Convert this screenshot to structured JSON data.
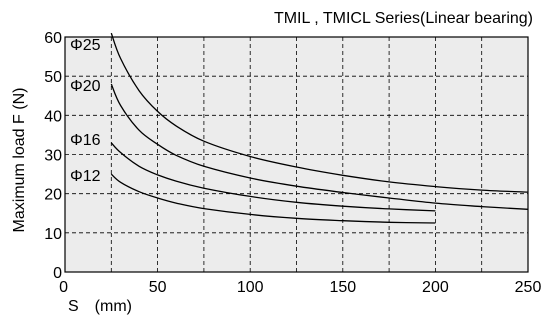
{
  "chart_data": {
    "type": "line",
    "title": "TMIL , TMICL Series(Linear bearing)",
    "xlabel": "S　(mm)",
    "ylabel": "Maximum load  F  (N)",
    "xlim": [
      0,
      250
    ],
    "ylim": [
      0,
      60
    ],
    "x_ticks": [
      "0",
      "50",
      "100",
      "150",
      "200",
      "250"
    ],
    "y_ticks": [
      "0",
      "10",
      "20",
      "30",
      "40",
      "50",
      "60"
    ],
    "grid": true,
    "grid_style": "dashed",
    "plot_background": "#ececec",
    "line_color": "#000000",
    "series": [
      {
        "name": "Φ25",
        "x": [
          25,
          30,
          40,
          50,
          60,
          75,
          100,
          125,
          150,
          175,
          200,
          225,
          250
        ],
        "y": [
          61,
          54.5,
          46.3,
          41,
          37.3,
          33.4,
          29.5,
          26.8,
          24.7,
          23,
          21.8,
          20.9,
          20.4
        ]
      },
      {
        "name": "Φ20",
        "x": [
          25,
          30,
          40,
          50,
          60,
          75,
          100,
          125,
          150,
          175,
          200,
          225,
          250
        ],
        "y": [
          48,
          42.5,
          36.2,
          32.6,
          29.8,
          27,
          24,
          21.9,
          20.3,
          18.9,
          17.6,
          16.7,
          16
        ]
      },
      {
        "name": "Φ16",
        "x": [
          25,
          30,
          40,
          50,
          60,
          75,
          100,
          125,
          150,
          175,
          200
        ],
        "y": [
          33,
          30.5,
          27,
          24.8,
          23.2,
          21.4,
          19.3,
          17.8,
          16.8,
          16.1,
          15.6
        ]
      },
      {
        "name": "Φ12",
        "x": [
          25,
          30,
          40,
          50,
          60,
          75,
          100,
          125,
          150,
          175,
          200
        ],
        "y": [
          25,
          22.9,
          20.5,
          18.9,
          17.6,
          16.2,
          14.7,
          13.7,
          13.1,
          12.7,
          12.5
        ]
      }
    ]
  }
}
